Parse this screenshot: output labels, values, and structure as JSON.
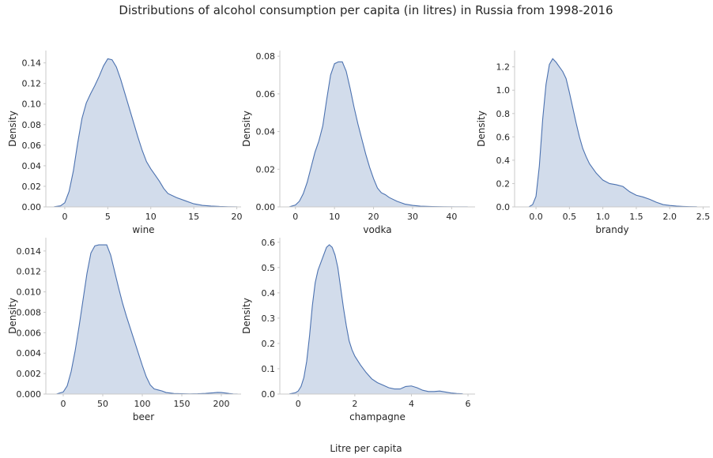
{
  "figure": {
    "suptitle": "Distributions of alcohol consumption per capita (in litres) in Russia from 1998-2016",
    "supxlabel": "Litre per capita",
    "fill_color": "#4c72b0",
    "line_color": "#4c72b0"
  },
  "chart_data": [
    {
      "type": "area",
      "xlabel": "wine",
      "ylabel": "Density",
      "xlim": [
        -2.2,
        20.5
      ],
      "ylim": [
        0,
        0.152
      ],
      "xticks": [
        0,
        5,
        10,
        15,
        20
      ],
      "yticks": [
        0.0,
        0.02,
        0.04,
        0.06,
        0.08,
        0.1,
        0.12,
        0.14
      ],
      "ytick_decimals": 2,
      "xtick_decimals": 0,
      "x": [
        -1.2,
        -0.5,
        0,
        0.5,
        1,
        1.5,
        2,
        2.5,
        3,
        3.5,
        4,
        4.5,
        5,
        5.5,
        6,
        6.5,
        7,
        7.5,
        8,
        8.5,
        9,
        9.5,
        10,
        10.5,
        11,
        11.5,
        12,
        13,
        14,
        15,
        16,
        17,
        18,
        19,
        20
      ],
      "y": [
        0.0002,
        0.001,
        0.004,
        0.015,
        0.035,
        0.062,
        0.086,
        0.101,
        0.11,
        0.118,
        0.127,
        0.137,
        0.144,
        0.143,
        0.136,
        0.124,
        0.11,
        0.096,
        0.082,
        0.068,
        0.055,
        0.044,
        0.037,
        0.031,
        0.025,
        0.018,
        0.013,
        0.009,
        0.006,
        0.003,
        0.0015,
        0.0008,
        0.0004,
        0.0002,
        0.0001
      ]
    },
    {
      "type": "area",
      "xlabel": "vodka",
      "ylabel": "Density",
      "xlim": [
        -4,
        46
      ],
      "ylim": [
        0,
        0.083
      ],
      "xticks": [
        0,
        10,
        20,
        30,
        40
      ],
      "yticks": [
        0.0,
        0.02,
        0.04,
        0.06,
        0.08
      ],
      "ytick_decimals": 2,
      "xtick_decimals": 0,
      "x": [
        -1.5,
        0,
        1,
        2,
        3,
        4,
        5,
        6,
        7,
        8,
        9,
        10,
        11,
        12,
        13,
        14,
        15,
        16,
        17,
        18,
        19,
        20,
        21,
        22,
        23,
        24,
        26,
        28,
        30,
        32,
        35,
        38,
        41,
        44
      ],
      "y": [
        0.0001,
        0.001,
        0.003,
        0.007,
        0.013,
        0.021,
        0.029,
        0.035,
        0.043,
        0.057,
        0.07,
        0.076,
        0.077,
        0.077,
        0.072,
        0.063,
        0.053,
        0.044,
        0.036,
        0.028,
        0.021,
        0.015,
        0.01,
        0.0075,
        0.0065,
        0.005,
        0.003,
        0.0015,
        0.0008,
        0.0004,
        0.0002,
        0.0001,
        5e-05,
        2e-05
      ]
    },
    {
      "type": "area",
      "xlabel": "brandy",
      "ylabel": "Density",
      "xlim": [
        -0.32,
        2.6
      ],
      "ylim": [
        0,
        1.34
      ],
      "xticks": [
        0,
        0.5,
        1,
        1.5,
        2,
        2.5
      ],
      "yticks": [
        0,
        0.2,
        0.4,
        0.6,
        0.8,
        1.0,
        1.2
      ],
      "ytick_decimals": 1,
      "xtick_decimals": 1,
      "x": [
        -0.1,
        -0.05,
        0,
        0.05,
        0.1,
        0.15,
        0.2,
        0.25,
        0.3,
        0.35,
        0.4,
        0.45,
        0.5,
        0.55,
        0.6,
        0.65,
        0.7,
        0.75,
        0.8,
        0.9,
        1.0,
        1.1,
        1.2,
        1.3,
        1.4,
        1.5,
        1.6,
        1.7,
        1.8,
        1.9,
        2.0,
        2.1,
        2.2,
        2.3,
        2.4
      ],
      "y": [
        0.002,
        0.02,
        0.09,
        0.35,
        0.75,
        1.05,
        1.22,
        1.27,
        1.24,
        1.2,
        1.16,
        1.1,
        0.98,
        0.85,
        0.72,
        0.6,
        0.5,
        0.43,
        0.37,
        0.29,
        0.23,
        0.2,
        0.19,
        0.175,
        0.13,
        0.1,
        0.085,
        0.065,
        0.04,
        0.02,
        0.012,
        0.007,
        0.004,
        0.002,
        0.001
      ]
    },
    {
      "type": "area",
      "xlabel": "beer",
      "ylabel": "Density",
      "xlim": [
        -22,
        225
      ],
      "ylim": [
        0,
        0.0153
      ],
      "xticks": [
        0,
        50,
        100,
        150,
        200
      ],
      "yticks": [
        0.0,
        0.002,
        0.004,
        0.006,
        0.008,
        0.01,
        0.012,
        0.014
      ],
      "ytick_decimals": 3,
      "xtick_decimals": 0,
      "x": [
        -8,
        0,
        5,
        10,
        15,
        20,
        25,
        30,
        35,
        40,
        45,
        50,
        55,
        60,
        65,
        70,
        75,
        80,
        85,
        90,
        95,
        100,
        105,
        110,
        115,
        120,
        125,
        130,
        140,
        150,
        160,
        170,
        180,
        190,
        195,
        200,
        205,
        210,
        215,
        220
      ],
      "y": [
        2e-05,
        0.0002,
        0.0008,
        0.0022,
        0.0042,
        0.0066,
        0.0092,
        0.0118,
        0.0138,
        0.0145,
        0.0146,
        0.0146,
        0.0146,
        0.0136,
        0.012,
        0.0104,
        0.0089,
        0.0076,
        0.0064,
        0.0052,
        0.004,
        0.0028,
        0.0017,
        0.0009,
        0.0005,
        0.0004,
        0.0003,
        0.00015,
        5e-05,
        3e-05,
        2e-05,
        3e-05,
        6e-05,
        0.00012,
        0.00016,
        0.00015,
        0.0001,
        5e-05,
        2e-05,
        1e-05
      ]
    },
    {
      "type": "area",
      "xlabel": "champagne",
      "ylabel": "Density",
      "xlim": [
        -0.65,
        6.25
      ],
      "ylim": [
        0,
        0.618
      ],
      "xticks": [
        0,
        2,
        4,
        6
      ],
      "yticks": [
        0.0,
        0.1,
        0.2,
        0.3,
        0.4,
        0.5,
        0.6
      ],
      "ytick_decimals": 1,
      "xtick_decimals": 0,
      "x": [
        -0.3,
        -0.1,
        0,
        0.1,
        0.2,
        0.3,
        0.4,
        0.5,
        0.6,
        0.7,
        0.8,
        0.9,
        1.0,
        1.1,
        1.2,
        1.3,
        1.4,
        1.5,
        1.6,
        1.7,
        1.8,
        1.9,
        2.0,
        2.2,
        2.4,
        2.6,
        2.8,
        3.0,
        3.2,
        3.4,
        3.6,
        3.8,
        4.0,
        4.2,
        4.4,
        4.6,
        4.8,
        5.0,
        5.2,
        5.4,
        5.6,
        5.8
      ],
      "y": [
        0.001,
        0.005,
        0.012,
        0.03,
        0.065,
        0.13,
        0.23,
        0.35,
        0.44,
        0.49,
        0.52,
        0.55,
        0.58,
        0.59,
        0.58,
        0.55,
        0.5,
        0.42,
        0.34,
        0.27,
        0.21,
        0.175,
        0.15,
        0.115,
        0.085,
        0.06,
        0.045,
        0.035,
        0.025,
        0.02,
        0.02,
        0.03,
        0.032,
        0.025,
        0.015,
        0.01,
        0.01,
        0.012,
        0.008,
        0.004,
        0.002,
        0.001
      ]
    }
  ]
}
